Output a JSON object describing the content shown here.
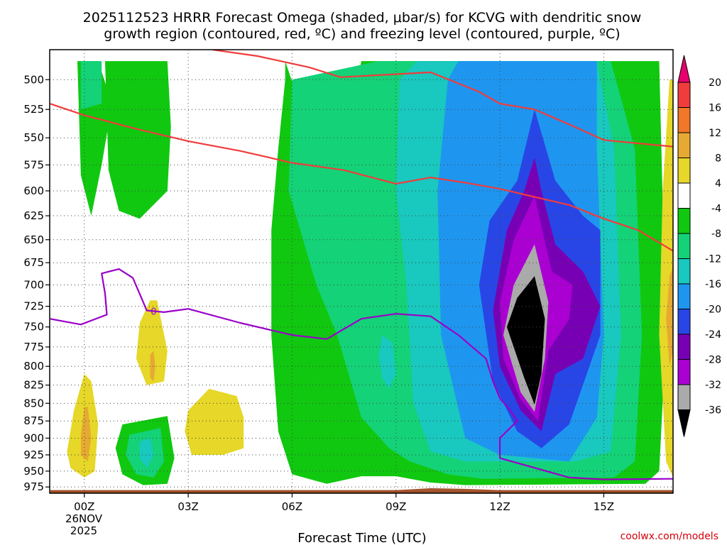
{
  "chart_data": {
    "type": "contour",
    "title_line1": "2025112523 HRRR Forecast Omega (shaded, μbar/s) for KCVG with dendritic snow",
    "title_line2": "growth region (contoured, red, ºC) and freezing level (contoured, purple, ºC)",
    "xlabel": "Forecast Time (UTC)",
    "x_ticks": [
      "00Z",
      "03Z",
      "06Z",
      "09Z",
      "12Z",
      "15Z"
    ],
    "x_tick_hours": [
      0,
      3,
      6,
      9,
      12,
      15
    ],
    "x_date_line1": "26NOV",
    "x_date_line2": "2025",
    "xlim": [
      -1,
      17
    ],
    "ylim": [
      476,
      985
    ],
    "y_scale": "log-pressure",
    "y_ticks": [
      500,
      525,
      550,
      575,
      600,
      625,
      650,
      675,
      700,
      725,
      750,
      775,
      800,
      825,
      850,
      875,
      900,
      925,
      950,
      975
    ],
    "grid": true,
    "colorbar": {
      "labels": [
        "20",
        "16",
        "12",
        "8",
        "4",
        "-4",
        "-8",
        "-12",
        "-16",
        "-20",
        "-24",
        "-28",
        "-32",
        "-36"
      ],
      "colors": [
        "#e8006e",
        "#f03c3c",
        "#f07828",
        "#e6aa32",
        "#e6d728",
        "#ffffff",
        "#10c810",
        "#14d278",
        "#19c8be",
        "#1e96f0",
        "#2846e6",
        "#7800b4",
        "#aa00d2",
        "#aaaaaa",
        "#000000"
      ]
    },
    "omega_regions": [
      {
        "level": -4,
        "color": "#10c810",
        "polygon": [
          [
            -0.2,
            485
          ],
          [
            0.4,
            485
          ],
          [
            0.8,
            520
          ],
          [
            0.5,
            575
          ],
          [
            0.2,
            625
          ],
          [
            -0.1,
            585
          ]
        ]
      },
      {
        "level": -4,
        "color": "#10c810",
        "polygon": [
          [
            0.6,
            485
          ],
          [
            2.4,
            485
          ],
          [
            2.5,
            540
          ],
          [
            2.4,
            600
          ],
          [
            1.6,
            628
          ],
          [
            1.0,
            620
          ],
          [
            0.7,
            580
          ]
        ]
      },
      {
        "level": -4,
        "color": "#10c810",
        "polygon": [
          [
            5.8,
            485
          ],
          [
            6.1,
            510
          ],
          [
            6.3,
            560
          ],
          [
            7.4,
            568
          ],
          [
            8.0,
            485
          ],
          [
            16.6,
            485
          ],
          [
            16.8,
            760
          ],
          [
            16.6,
            950
          ],
          [
            16.2,
            970
          ],
          [
            11.0,
            972
          ],
          [
            10.0,
            968
          ],
          [
            9.0,
            958
          ],
          [
            8.0,
            958
          ],
          [
            7.0,
            970
          ],
          [
            6.0,
            955
          ],
          [
            5.6,
            890
          ],
          [
            5.4,
            760
          ],
          [
            5.4,
            640
          ],
          [
            5.6,
            560
          ],
          [
            5.8,
            500
          ]
        ]
      },
      {
        "level": -4,
        "color": "#10c810",
        "polygon": [
          [
            1.1,
            880
          ],
          [
            2.4,
            868
          ],
          [
            2.6,
            930
          ],
          [
            2.4,
            970
          ],
          [
            1.7,
            972
          ],
          [
            1.1,
            955
          ],
          [
            0.9,
            915
          ]
        ]
      },
      {
        "level": -8,
        "color": "#14d278",
        "polygon": [
          [
            -0.1,
            485
          ],
          [
            0.5,
            485
          ],
          [
            0.5,
            520
          ],
          [
            -0.1,
            525
          ]
        ]
      },
      {
        "level": -8,
        "color": "#14d278",
        "polygon": [
          [
            8.5,
            485
          ],
          [
            15.2,
            485
          ],
          [
            15.9,
            560
          ],
          [
            16.1,
            760
          ],
          [
            15.9,
            935
          ],
          [
            15.3,
            960
          ],
          [
            11.5,
            962
          ],
          [
            10.5,
            955
          ],
          [
            9.4,
            935
          ],
          [
            8.8,
            915
          ],
          [
            8.0,
            870
          ],
          [
            7.3,
            760
          ],
          [
            6.7,
            700
          ],
          [
            5.9,
            600
          ],
          [
            6.0,
            500
          ]
        ]
      },
      {
        "level": -8,
        "color": "#14d278",
        "polygon": [
          [
            1.3,
            895
          ],
          [
            2.2,
            885
          ],
          [
            2.3,
            935
          ],
          [
            2.0,
            960
          ],
          [
            1.5,
            955
          ],
          [
            1.2,
            925
          ]
        ]
      },
      {
        "level": -12,
        "color": "#19c8be",
        "polygon": [
          [
            9.6,
            485
          ],
          [
            14.8,
            485
          ],
          [
            15.3,
            560
          ],
          [
            15.5,
            760
          ],
          [
            15.2,
            920
          ],
          [
            14.2,
            935
          ],
          [
            11.0,
            935
          ],
          [
            10.0,
            920
          ],
          [
            9.5,
            850
          ],
          [
            9.3,
            700
          ],
          [
            9.0,
            600
          ],
          [
            9.1,
            500
          ]
        ]
      },
      {
        "level": -12,
        "color": "#19c8be",
        "polygon": [
          [
            8.6,
            760
          ],
          [
            8.9,
            770
          ],
          [
            9.0,
            810
          ],
          [
            8.8,
            830
          ],
          [
            8.6,
            815
          ],
          [
            8.5,
            785
          ]
        ]
      },
      {
        "level": -12,
        "color": "#19c8be",
        "polygon": [
          [
            1.6,
            905
          ],
          [
            1.9,
            900
          ],
          [
            2.0,
            925
          ],
          [
            1.8,
            945
          ],
          [
            1.6,
            930
          ]
        ]
      },
      {
        "level": -16,
        "color": "#1e96f0",
        "polygon": [
          [
            10.8,
            485
          ],
          [
            14.8,
            485
          ],
          [
            14.8,
            560
          ],
          [
            15.0,
            760
          ],
          [
            14.8,
            870
          ],
          [
            14.0,
            935
          ],
          [
            12.0,
            925
          ],
          [
            11.0,
            900
          ],
          [
            10.3,
            760
          ],
          [
            10.2,
            600
          ],
          [
            10.5,
            500
          ]
        ]
      },
      {
        "level": -20,
        "color": "#2846e6",
        "polygon": [
          [
            13.0,
            525
          ],
          [
            13.6,
            590
          ],
          [
            14.4,
            625
          ],
          [
            14.9,
            640
          ],
          [
            14.9,
            760
          ],
          [
            14.0,
            880
          ],
          [
            13.2,
            915
          ],
          [
            12.5,
            890
          ],
          [
            11.8,
            820
          ],
          [
            11.4,
            700
          ],
          [
            11.7,
            630
          ],
          [
            12.5,
            590
          ]
        ]
      },
      {
        "level": -24,
        "color": "#7800b4",
        "polygon": [
          [
            13.0,
            568
          ],
          [
            13.2,
            600
          ],
          [
            13.6,
            655
          ],
          [
            14.4,
            685
          ],
          [
            14.9,
            725
          ],
          [
            14.4,
            790
          ],
          [
            13.6,
            810
          ],
          [
            13.2,
            890
          ],
          [
            12.6,
            860
          ],
          [
            12.0,
            800
          ],
          [
            11.8,
            730
          ],
          [
            12.2,
            640
          ],
          [
            12.7,
            600
          ]
        ]
      },
      {
        "level": -28,
        "color": "#aa00d2",
        "polygon": [
          [
            13.0,
            605
          ],
          [
            13.5,
            685
          ],
          [
            14.1,
            700
          ],
          [
            14.0,
            740
          ],
          [
            13.4,
            780
          ],
          [
            13.1,
            875
          ],
          [
            12.6,
            845
          ],
          [
            12.1,
            790
          ],
          [
            12.0,
            720
          ],
          [
            12.4,
            650
          ]
        ]
      },
      {
        "level": -32,
        "color": "#aaaaaa",
        "polygon": [
          [
            13.0,
            655
          ],
          [
            13.4,
            720
          ],
          [
            13.3,
            790
          ],
          [
            13.0,
            862
          ],
          [
            12.6,
            835
          ],
          [
            12.1,
            760
          ],
          [
            12.4,
            700
          ]
        ]
      },
      {
        "level": -36,
        "color": "#000000",
        "polygon": [
          [
            13.0,
            690
          ],
          [
            13.3,
            740
          ],
          [
            13.2,
            810
          ],
          [
            13.0,
            852
          ],
          [
            12.7,
            815
          ],
          [
            12.2,
            750
          ],
          [
            12.5,
            715
          ]
        ]
      },
      {
        "level": 4,
        "color": "#e6d728",
        "polygon": [
          [
            -0.5,
            920
          ],
          [
            -0.3,
            860
          ],
          [
            0.0,
            810
          ],
          [
            0.2,
            820
          ],
          [
            0.4,
            880
          ],
          [
            0.3,
            950
          ],
          [
            0.0,
            960
          ],
          [
            -0.4,
            945
          ]
        ]
      },
      {
        "level": 8,
        "color": "#e6aa32",
        "polygon": [
          [
            -0.1,
            895
          ],
          [
            0.0,
            855
          ],
          [
            0.1,
            855
          ],
          [
            0.2,
            900
          ],
          [
            0.1,
            935
          ],
          [
            -0.1,
            925
          ]
        ]
      },
      {
        "level": 4,
        "color": "#e6d728",
        "polygon": [
          [
            1.6,
            745
          ],
          [
            1.9,
            718
          ],
          [
            2.1,
            718
          ],
          [
            2.4,
            780
          ],
          [
            2.3,
            820
          ],
          [
            1.8,
            825
          ],
          [
            1.5,
            790
          ]
        ]
      },
      {
        "level": 8,
        "color": "#e6aa32",
        "polygon": [
          [
            1.9,
            785
          ],
          [
            2.0,
            780
          ],
          [
            2.05,
            800
          ],
          [
            2.0,
            820
          ],
          [
            1.9,
            815
          ]
        ]
      },
      {
        "level": 4,
        "color": "#e6d728",
        "polygon": [
          [
            3.0,
            860
          ],
          [
            3.6,
            830
          ],
          [
            4.4,
            840
          ],
          [
            4.6,
            870
          ],
          [
            4.6,
            915
          ],
          [
            4.0,
            925
          ],
          [
            3.1,
            925
          ],
          [
            2.9,
            890
          ]
        ]
      },
      {
        "level": 4,
        "color": "#e6d728",
        "polygon": [
          [
            16.9,
            500
          ],
          [
            17,
            500
          ],
          [
            17,
            960
          ],
          [
            16.8,
            935
          ],
          [
            16.6,
            760
          ],
          [
            16.7,
            600
          ]
        ]
      },
      {
        "level": 8,
        "color": "#e6aa32",
        "polygon": [
          [
            16.9,
            690
          ],
          [
            17,
            680
          ],
          [
            17,
            780
          ],
          [
            16.9,
            800
          ],
          [
            16.8,
            740
          ]
        ]
      }
    ],
    "dgz_lines": [
      {
        "name": "-12 isotherm",
        "color": "#f03c3c",
        "points": [
          [
            3.7,
            476
          ],
          [
            5.0,
            481
          ],
          [
            6.5,
            490
          ],
          [
            7.4,
            498
          ],
          [
            10.0,
            494
          ],
          [
            11.4,
            510
          ],
          [
            12.0,
            520
          ],
          [
            13.0,
            525
          ],
          [
            14.0,
            538
          ],
          [
            15.0,
            552
          ],
          [
            16.0,
            555
          ],
          [
            17.0,
            558
          ]
        ]
      },
      {
        "name": "-18 isotherm",
        "color": "#f03c3c",
        "points": [
          [
            -1.0,
            520
          ],
          [
            0.0,
            530
          ],
          [
            1.5,
            542
          ],
          [
            3.0,
            553
          ],
          [
            4.5,
            562
          ],
          [
            6.0,
            573
          ],
          [
            7.5,
            580
          ],
          [
            9.0,
            593
          ],
          [
            10.0,
            587
          ],
          [
            11.0,
            592
          ],
          [
            12.0,
            598
          ],
          [
            13.0,
            606
          ],
          [
            14.0,
            614
          ],
          [
            15.0,
            628
          ],
          [
            16.0,
            640
          ],
          [
            17.0,
            662
          ]
        ]
      },
      {
        "name": "freezing level",
        "color": "#9a00c8",
        "points": [
          [
            -1.0,
            740
          ],
          [
            -0.1,
            747
          ],
          [
            0.65,
            735
          ],
          [
            0.6,
            710
          ],
          [
            0.5,
            687
          ],
          [
            1.0,
            682
          ],
          [
            1.4,
            692
          ],
          [
            1.7,
            720
          ],
          [
            1.8,
            730
          ],
          [
            2.3,
            732
          ],
          [
            3.0,
            728
          ],
          [
            4.5,
            745
          ],
          [
            6.0,
            760
          ],
          [
            7.0,
            765
          ],
          [
            8.0,
            740
          ],
          [
            9.0,
            734
          ],
          [
            10.0,
            737
          ],
          [
            10.8,
            760
          ],
          [
            11.6,
            790
          ],
          [
            11.8,
            820
          ],
          [
            12.0,
            843
          ],
          [
            12.3,
            860
          ],
          [
            12.5,
            875
          ],
          [
            12.0,
            900
          ],
          [
            12.0,
            930
          ],
          [
            14.0,
            960
          ],
          [
            15.0,
            963
          ],
          [
            17.0,
            962
          ]
        ]
      }
    ],
    "freezing_label": "0",
    "freezing_label_at": [
      2.0,
      731
    ],
    "terrain_color": "#a05028",
    "terrain_top": 980,
    "terrain_bump": [
      [
        9.0,
        980
      ],
      [
        10.0,
        977
      ],
      [
        11.0,
        978
      ],
      [
        12.0,
        980
      ]
    ]
  },
  "credit": "coolwx.com/models"
}
